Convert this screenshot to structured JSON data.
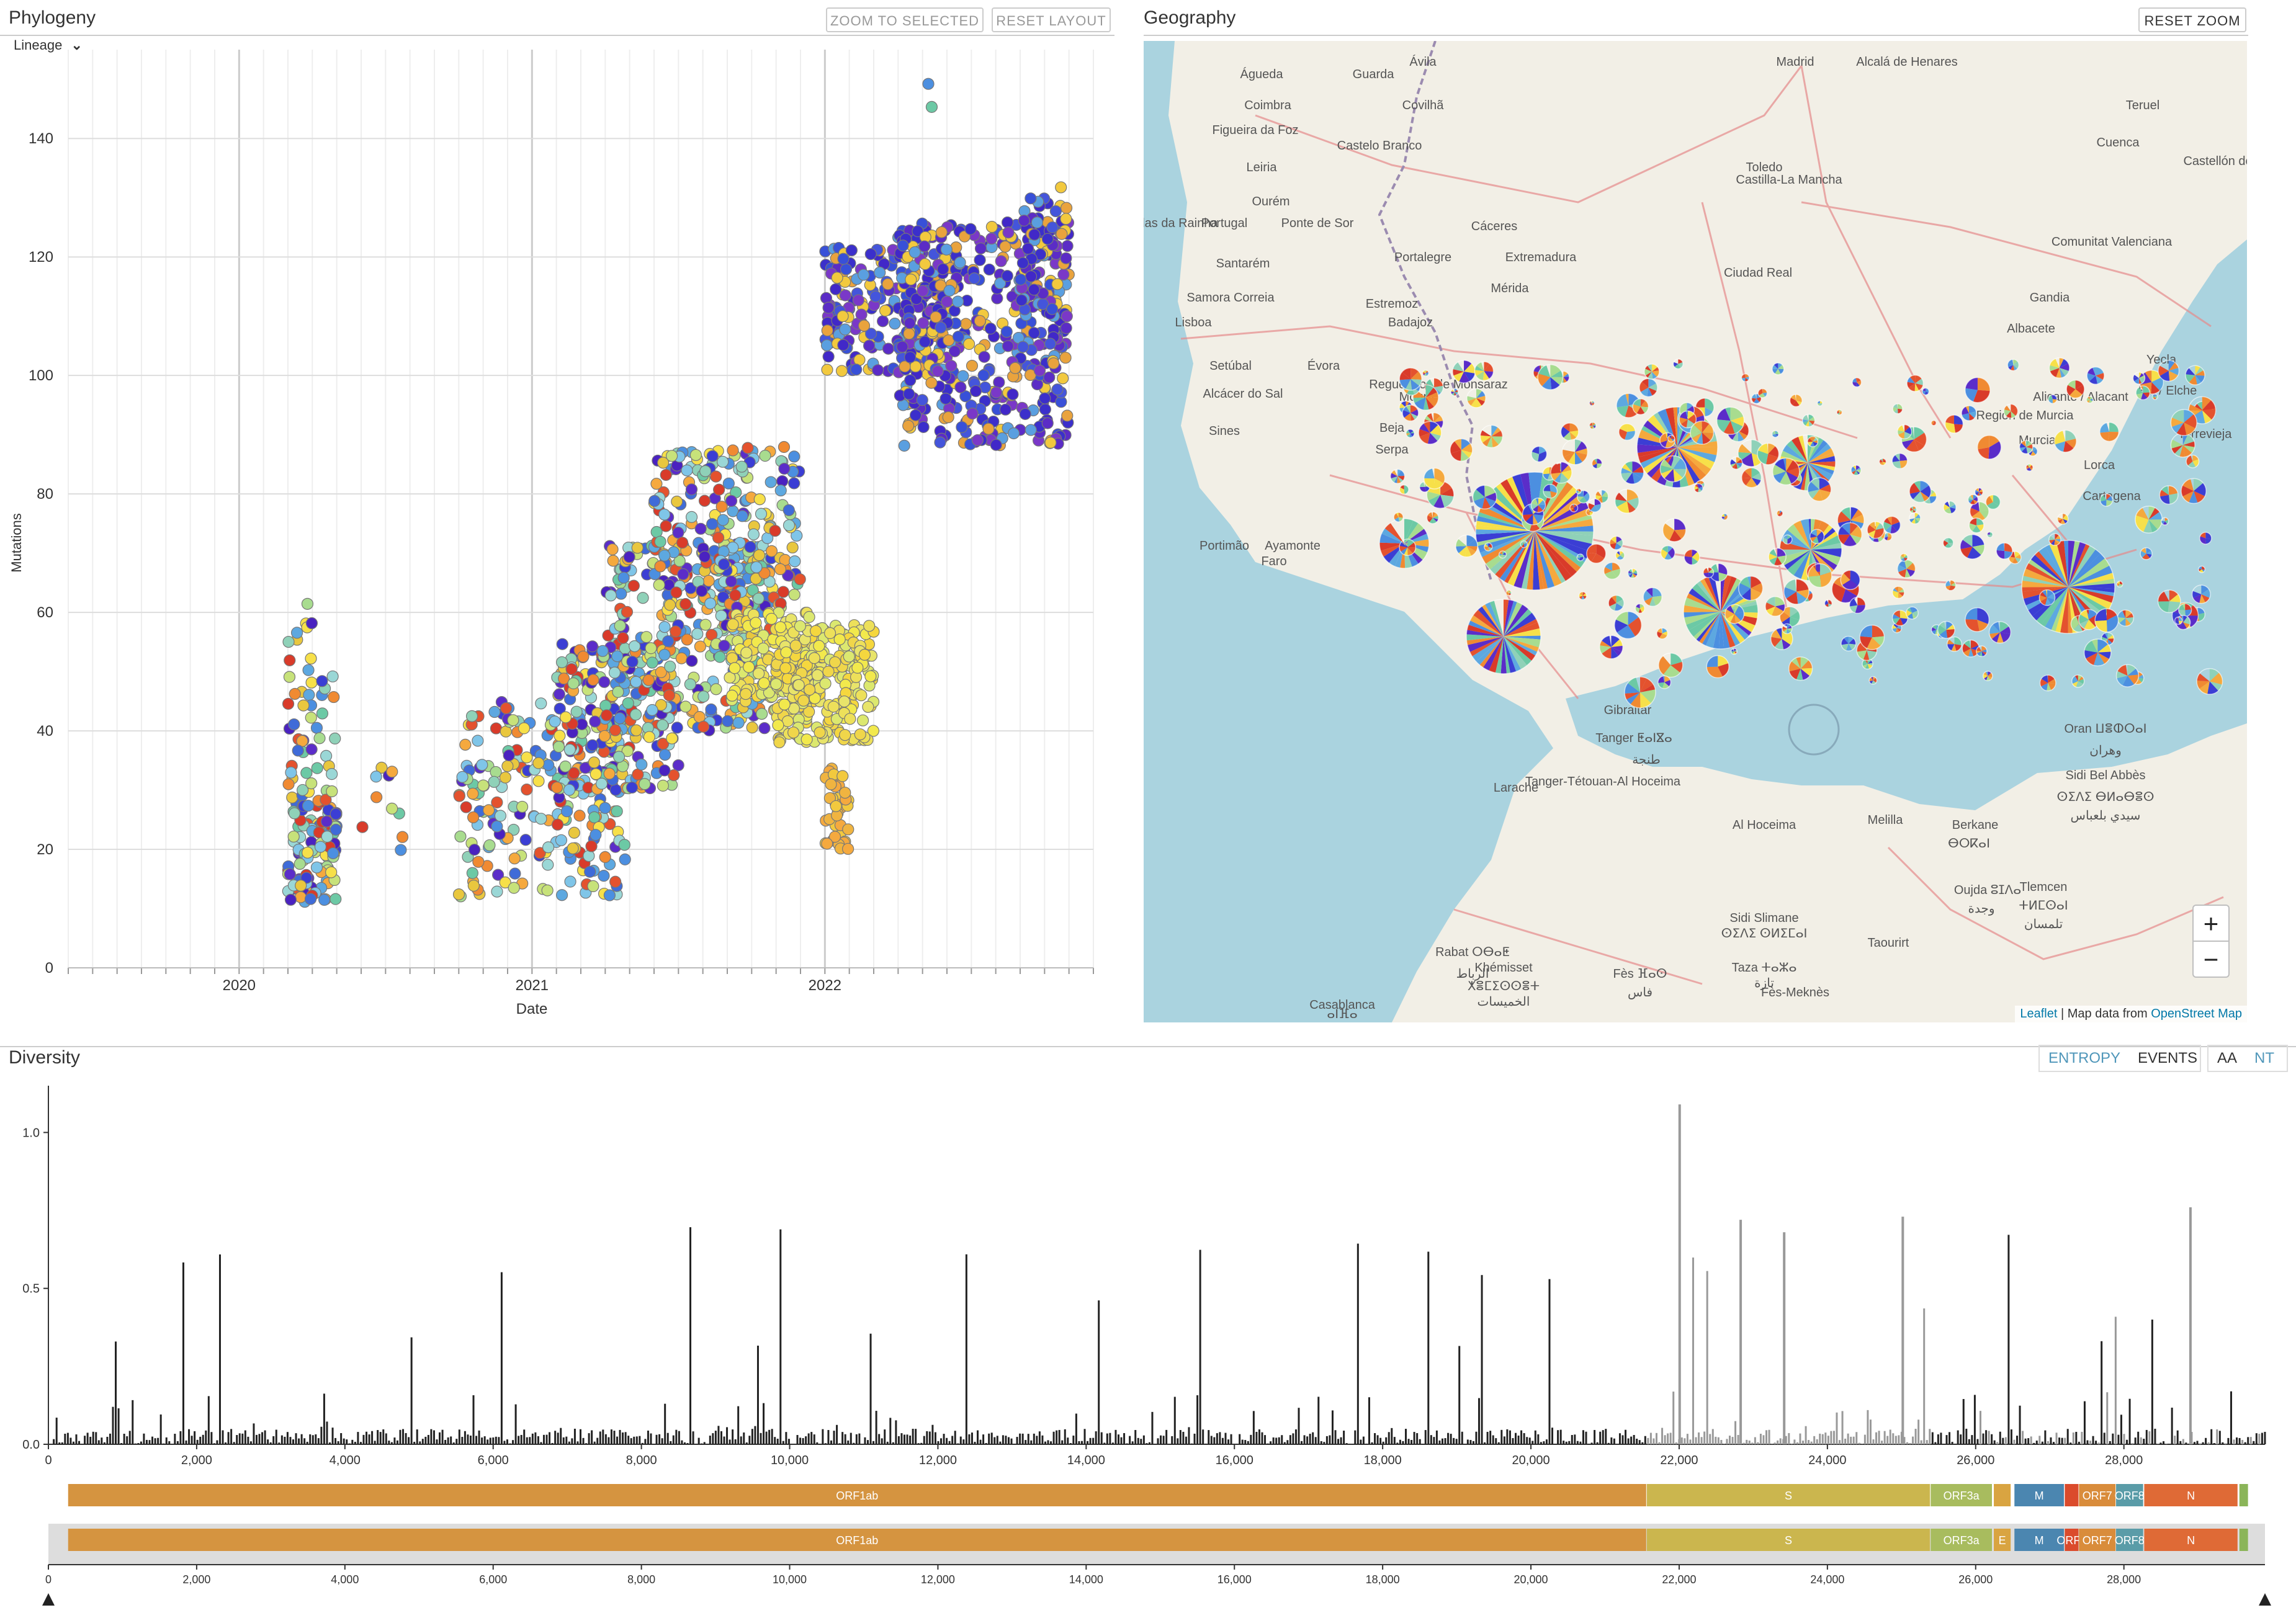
{
  "phylogeny": {
    "title": "Phylogeny",
    "zoom_to_selected": "ZOOM TO SELECTED",
    "reset_layout": "RESET LAYOUT",
    "color_by": "Lineage",
    "x_axis_label": "Date",
    "y_axis_label": "Mutations",
    "x_ticks": [
      "2020",
      "2021",
      "2022"
    ],
    "y_ticks": [
      "0",
      "20",
      "40",
      "60",
      "80",
      "100",
      "120",
      "140"
    ]
  },
  "geography": {
    "title": "Geography",
    "reset_zoom": "RESET ZOOM",
    "zoom_in": "+",
    "zoom_out": "−",
    "attribution_leaflet": "Leaflet",
    "attribution_text": " | Map data from ",
    "attribution_osm": "OpenStreet Map",
    "place_labels": [
      "Ávila",
      "Madrid",
      "Alcalá de Henares",
      "Águeda",
      "Guarda",
      "Coimbra",
      "Covilhã",
      "Teruel",
      "Figueira da Foz",
      "Castelo Branco",
      "Toledo",
      "Cuenca",
      "Castellón de la Plana",
      "Leiria",
      "Ourém",
      "Portugal",
      "Ponte de Sor",
      "Cáceres",
      "Castilla-La Mancha",
      "Caldas da Rainha",
      "Santarém",
      "Portalegre",
      "Extremadura",
      "Comunitat Valenciana",
      "Samora Correia",
      "Mérida",
      "Ciudad Real",
      "Gandia",
      "Lisboa",
      "Estremoz",
      "Badajoz",
      "Albacete",
      "Setúbal",
      "Évora",
      "Reguengos de Monsaraz",
      "Yecla",
      "Alcácer do Sal",
      "Moura",
      "Alicante / Alacant",
      "Elx / Elche",
      "Sines",
      "Beja",
      "Región de Murcia",
      "Serpa",
      "Murcia",
      "Torrevieja",
      "Lorca",
      "Cartagena",
      "Portimão",
      "Faro",
      "Ayamonte",
      "Gibraltar",
      "Tanger ⵟⴰⵏⴵⴰ",
      "طنجة",
      "Tanger-Tétouan-Al Hoceima",
      "Larache",
      "Oran ⵡⴻⵀⵔⴰⵏ",
      "وهران",
      "Sidi Bel Abbès",
      "ⵙⵉⴷⵉ ⴱⵍⴰⴱⴻⵙ",
      "سيدي بلعباس",
      "Melilla",
      "Al Hoceima",
      "Berkane",
      "ⴱⵔⴽⴰⵏ",
      "Tlemcen",
      "ⵜⵍⵎⵙⴰⵏ",
      "تلمسان",
      "Oujda ⵓⵊⴷⴰ",
      "وجدة",
      "Sidi Slimane",
      "ⵙⵉⴷⵉ ⵙⵍⵉⵎⴰⵏ",
      "Rabat ⵔⴱⴰⵟ",
      "الرباط",
      "Fès ⴼⴰⵙ",
      "فاس",
      "Taza ⵜⴰⵣⴰ",
      "تازة",
      "Taourirt",
      "Khémisset",
      "ⵅⴻⵎⵉⵙⵙⴻⵜ",
      "الخميسات",
      "Fès-Meknès",
      "Casablanca",
      "ⴰⵏⴼⴰ"
    ]
  },
  "diversity": {
    "title": "Diversity",
    "entropy": "ENTROPY",
    "events": "EVENTS",
    "aa": "AA",
    "nt": "NT",
    "y_ticks": [
      "0.0",
      "0.5",
      "1.0"
    ],
    "x_ticks": [
      "0",
      "2,000",
      "4,000",
      "6,000",
      "8,000",
      "10,000",
      "12,000",
      "14,000",
      "16,000",
      "18,000",
      "20,000",
      "22,000",
      "24,000",
      "26,000",
      "28,000"
    ],
    "genes_top": [
      "ORF1ab",
      "S",
      "ORF3a",
      "M",
      "ORF7",
      "ORF8",
      "N"
    ],
    "genes_bottom": [
      "ORF1ab",
      "S",
      "ORF3a",
      "E",
      "M",
      "ORF6",
      "ORF7",
      "ORF8",
      "N"
    ]
  },
  "colors": {
    "accent": "#5097BA",
    "orf1ab": "#D59440",
    "s": "#CBB64E",
    "orf3a": "#A8BC5E",
    "e": "#D9A441",
    "m": "#4B86B0",
    "orf6": "#DB4B2C",
    "orf7": "#D98C3B",
    "orf8": "#5A9CA8",
    "n": "#DF6A36",
    "orf9b": "#8BB559"
  },
  "chart_data": {
    "type": "scatter",
    "title": "",
    "xlabel": "Date",
    "ylabel": "Mutations",
    "xlim": [
      "2019-06",
      "2022-12"
    ],
    "ylim": [
      0,
      155
    ],
    "grid": true,
    "clusters": [
      {
        "x_range": [
          "2020-03",
          "2020-06"
        ],
        "y_range": [
          11,
          64
        ],
        "colors": "mixed"
      },
      {
        "x_range": [
          "2020-10",
          "2021-05"
        ],
        "y_range": [
          10,
          50
        ],
        "colors": "mixed"
      },
      {
        "x_range": [
          "2021-04",
          "2021-12"
        ],
        "y_range": [
          30,
          90
        ],
        "colors": "mixed"
      },
      {
        "x_range": [
          "2021-12",
          "2022-03"
        ],
        "y_range": [
          20,
          60
        ],
        "colors": "yellow"
      },
      {
        "x_range": [
          "2022-01",
          "2022-11"
        ],
        "y_range": [
          80,
          135
        ],
        "colors": "indigo"
      }
    ]
  }
}
